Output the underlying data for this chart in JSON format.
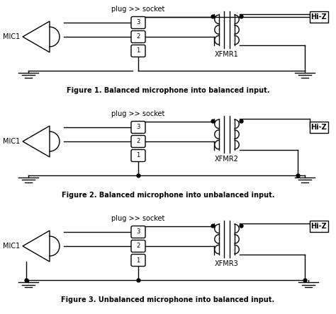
{
  "bg_color": "#ffffff",
  "line_color": "#000000",
  "fig_width": 4.74,
  "fig_height": 4.44,
  "dpi": 100,
  "figures": [
    {
      "label": "Figure 1. Balanced microphone into balanced input.",
      "xfmr_label": "XFMR1",
      "fig_num": 1,
      "left_dot_top": true,
      "right_dot_top": true,
      "mic_unbalanced": false,
      "pin1_to_ground_line": false,
      "right_bottom_to_ground": true,
      "right_top_to_hiz": true,
      "hiz_y_above_pin3": true
    },
    {
      "label": "Figure 2. Balanced microphone into unbalanced input.",
      "xfmr_label": "XFMR2",
      "fig_num": 2,
      "left_dot_top": true,
      "right_dot_top": true,
      "mic_unbalanced": false,
      "pin1_to_ground_line": true,
      "right_bottom_to_ground": true,
      "right_top_to_hiz": true,
      "hiz_y_above_pin3": false
    },
    {
      "label": "Figure 3. Unbalanced microphone into balanced input.",
      "xfmr_label": "XFMR3",
      "fig_num": 3,
      "left_dot_top": true,
      "right_dot_top": true,
      "mic_unbalanced": true,
      "pin1_to_ground_line": true,
      "right_bottom_to_ground": true,
      "right_top_to_hiz": true,
      "hiz_y_above_pin3": true
    }
  ]
}
